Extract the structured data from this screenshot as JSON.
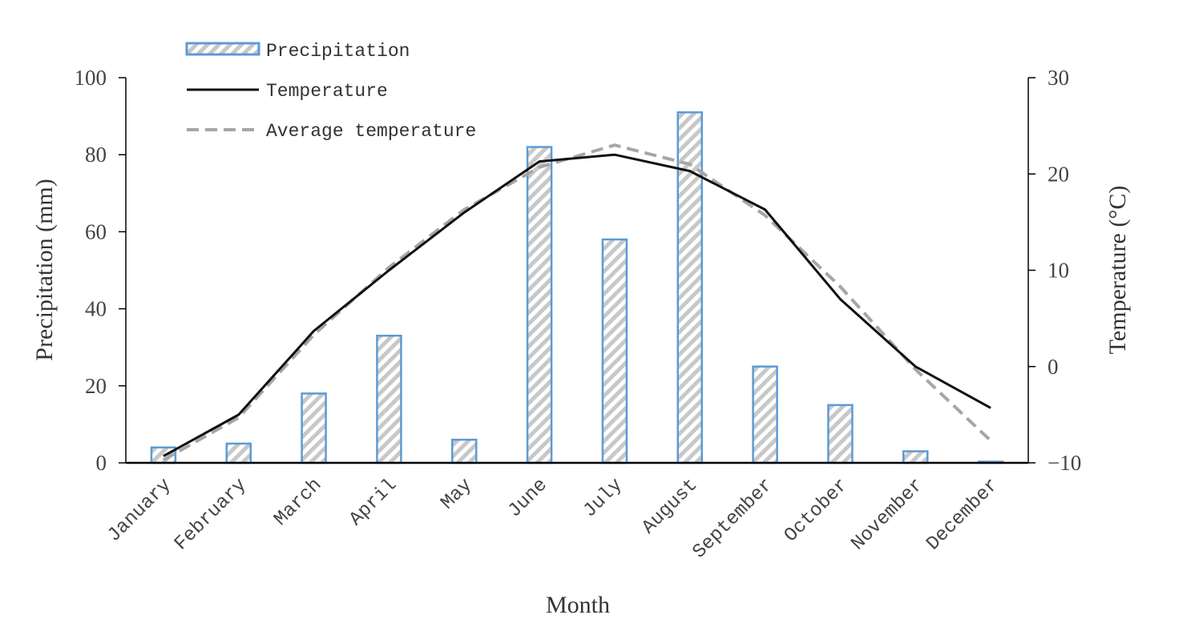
{
  "chart_data": {
    "type": "bar+line",
    "categories": [
      "January",
      "February",
      "March",
      "April",
      "May",
      "June",
      "July",
      "August",
      "September",
      "October",
      "November",
      "December"
    ],
    "series": [
      {
        "name": "Precipitation",
        "kind": "bar",
        "axis": "left",
        "values": [
          4,
          5,
          18,
          33,
          6,
          82,
          58,
          91,
          25,
          15,
          3,
          0.3
        ]
      },
      {
        "name": "Temperature",
        "kind": "line",
        "axis": "right",
        "values": [
          -9.3,
          -5.0,
          3.7,
          10.0,
          16.0,
          21.3,
          22.0,
          20.3,
          16.3,
          7.0,
          0.0,
          -4.3
        ]
      },
      {
        "name": "Average temperature",
        "kind": "line-dashed",
        "axis": "right",
        "values": [
          -9.7,
          -5.3,
          3.3,
          10.3,
          16.3,
          20.7,
          23.0,
          21.0,
          15.7,
          8.3,
          -0.3,
          -7.7
        ]
      }
    ],
    "xlabel": "Month",
    "ylabel": "Precipitation (mm)",
    "y2label": "Temperature (°C)",
    "ylim": [
      0,
      100
    ],
    "yticks": [
      "0",
      "20",
      "40",
      "60",
      "80",
      "100"
    ],
    "y2lim": [
      -10,
      30
    ],
    "y2ticks": [
      "−10",
      "0",
      "10",
      "20",
      "30"
    ],
    "grid": false,
    "legend_position": "top-left",
    "colors": {
      "bar_edge": "#5b9bd5",
      "hatch": "#c8c8c8",
      "temperature": "#111111",
      "average": "#a6a6a6",
      "axis": "#000000"
    }
  }
}
